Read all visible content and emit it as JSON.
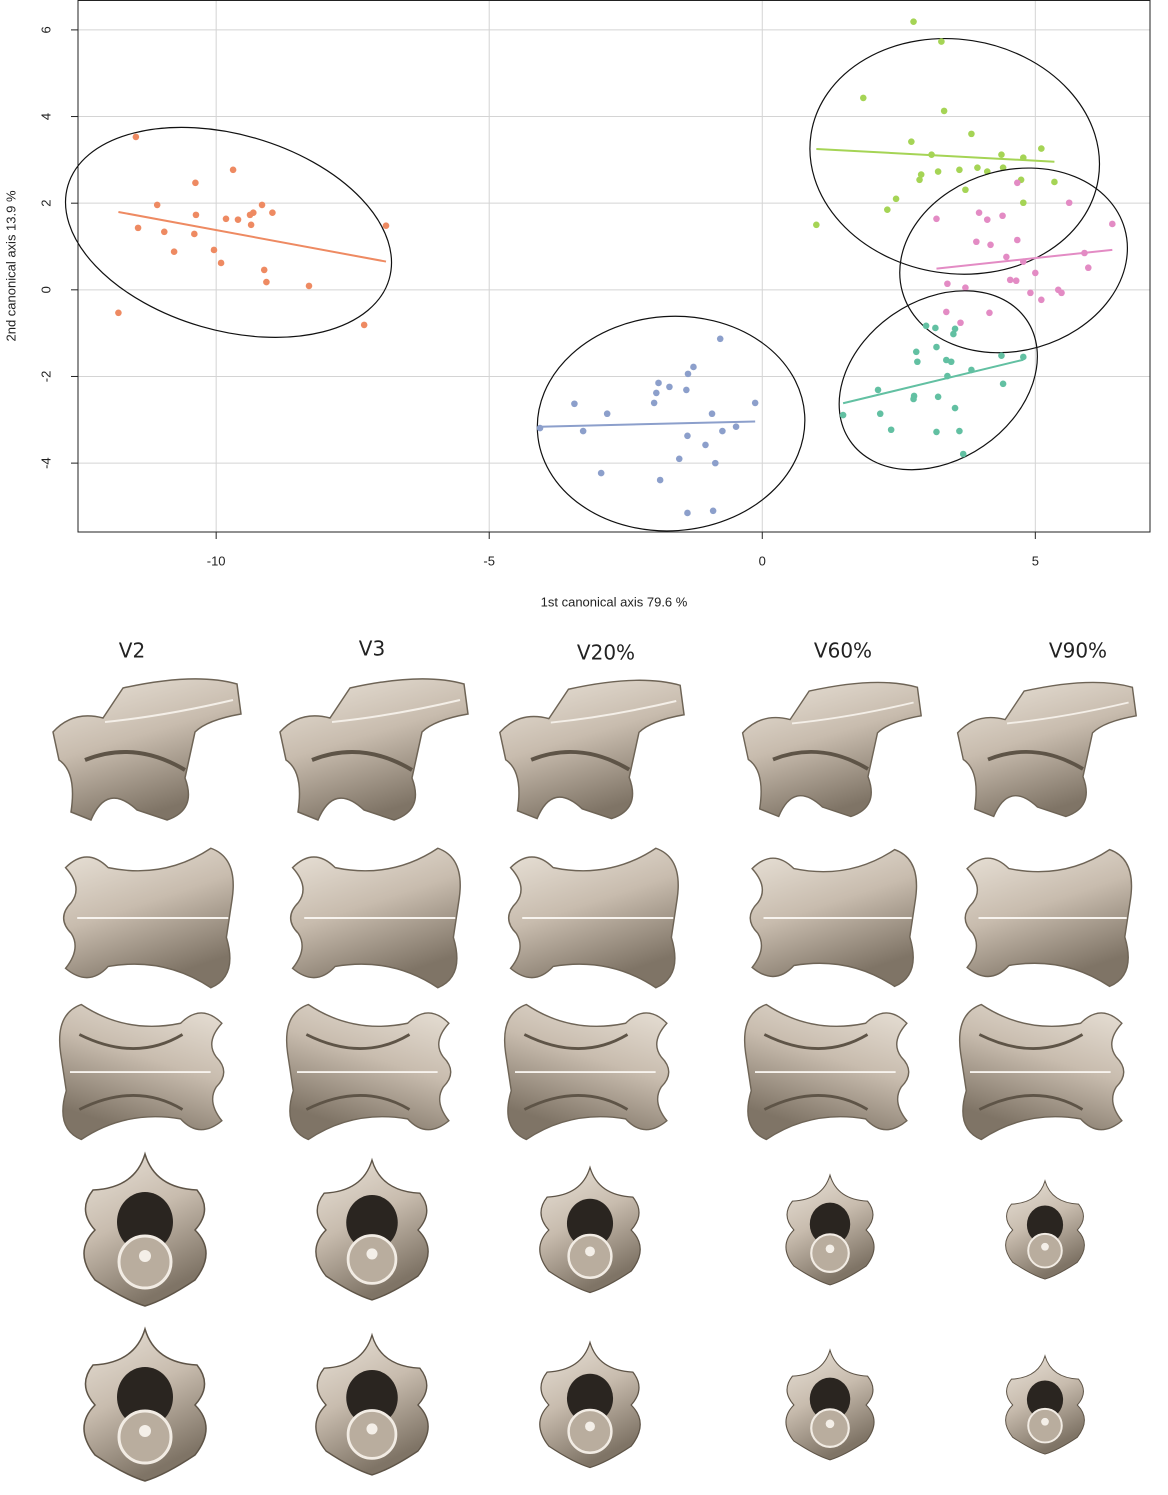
{
  "chart_data": {
    "type": "scatter",
    "xlabel": "1st canonical axis 79.6 %",
    "ylabel": "2nd canonical axis 13.9 %",
    "xlim": [
      -12.53,
      7.1
    ],
    "ylim": [
      -5.59,
      6.69
    ],
    "xticks": [
      -10,
      -5,
      0,
      5
    ],
    "yticks": [
      -4,
      -2,
      0,
      2,
      4,
      6
    ],
    "grid": true,
    "series": [
      {
        "color": "#ee8a62",
        "x": [
          -11.47,
          -11.43,
          -11.08,
          -10.95,
          -10.77,
          -10.4,
          -10.38,
          -10.37,
          -10.04,
          -9.91,
          -9.82,
          -9.69,
          -9.6,
          -9.38,
          -9.36,
          -9.32,
          -9.16,
          -9.12,
          -9.08,
          -8.97,
          -8.3,
          -7.29,
          -6.89,
          -11.79
        ],
        "y": [
          3.53,
          1.43,
          1.96,
          1.34,
          0.88,
          1.29,
          2.47,
          1.73,
          0.92,
          0.62,
          1.64,
          2.77,
          1.62,
          1.73,
          1.5,
          1.78,
          1.96,
          0.46,
          0.18,
          1.78,
          0.09,
          -0.81,
          1.48,
          -0.53
        ]
      },
      {
        "color": "#8c9fcb",
        "x": [
          -4.07,
          -3.44,
          -3.28,
          -2.95,
          -2.84,
          -1.98,
          -1.94,
          -1.9,
          -1.87,
          -1.7,
          -1.39,
          -1.36,
          -1.26,
          -1.52,
          -1.37,
          -1.04,
          -0.92,
          -0.9,
          -0.86,
          -0.77,
          -0.73,
          -0.48,
          -0.13,
          -1.37
        ],
        "y": [
          -3.19,
          -2.63,
          -3.26,
          -4.23,
          -2.86,
          -2.61,
          -2.38,
          -2.15,
          -4.39,
          -2.24,
          -2.31,
          -1.94,
          -1.78,
          -3.9,
          -3.37,
          -3.58,
          -2.86,
          -5.1,
          -4.0,
          -1.13,
          -3.26,
          -3.16,
          -2.61,
          -5.15
        ]
      },
      {
        "color": "#a5d455",
        "x": [
          2.77,
          3.28,
          1.85,
          0.99,
          3.33,
          2.73,
          3.83,
          3.1,
          2.91,
          2.88,
          3.22,
          2.29,
          2.45,
          3.72,
          3.61,
          3.94,
          4.38,
          4.41,
          4.78,
          5.11,
          5.35,
          4.74,
          4.78,
          4.12
        ],
        "y": [
          6.19,
          5.73,
          4.43,
          1.5,
          4.13,
          3.42,
          3.6,
          3.12,
          2.66,
          2.54,
          2.73,
          1.85,
          2.1,
          2.31,
          2.77,
          2.82,
          3.12,
          2.82,
          3.05,
          3.26,
          2.49,
          2.54,
          2.01,
          2.73
        ]
      },
      {
        "color": "#e38bc4",
        "x": [
          3.19,
          3.39,
          3.37,
          3.72,
          3.97,
          3.92,
          4.18,
          4.12,
          4.4,
          4.47,
          4.67,
          4.54,
          4.78,
          5.0,
          4.65,
          4.91,
          5.11,
          5.42,
          5.48,
          5.62,
          5.9,
          5.97,
          6.41,
          4.67,
          4.16,
          3.63
        ],
        "y": [
          1.64,
          0.14,
          -0.51,
          0.05,
          1.78,
          1.11,
          1.04,
          1.62,
          1.71,
          0.76,
          1.15,
          0.23,
          0.65,
          0.39,
          0.21,
          -0.07,
          -0.23,
          0.0,
          -0.07,
          2.01,
          0.85,
          0.51,
          1.52,
          2.47,
          -0.53,
          -0.76
        ]
      },
      {
        "color": "#62c0a2",
        "x": [
          1.48,
          2.12,
          2.16,
          2.36,
          2.78,
          2.82,
          3.0,
          3.19,
          3.17,
          3.22,
          3.39,
          3.37,
          3.46,
          3.5,
          3.53,
          3.53,
          3.61,
          3.68,
          3.83,
          4.38,
          4.41,
          4.78,
          3.19,
          2.84,
          2.77
        ],
        "y": [
          -2.89,
          -2.31,
          -2.86,
          -3.23,
          -2.45,
          -1.43,
          -0.83,
          -1.32,
          -0.88,
          -2.47,
          -1.99,
          -1.62,
          -1.66,
          -1.02,
          -0.9,
          -2.73,
          -3.26,
          -3.79,
          -1.85,
          -1.52,
          -2.17,
          -1.55,
          -3.28,
          -1.66,
          -2.52
        ]
      }
    ]
  },
  "panel_labels": [
    "V2",
    "V3",
    "V20%",
    "V60%",
    "V90%"
  ]
}
